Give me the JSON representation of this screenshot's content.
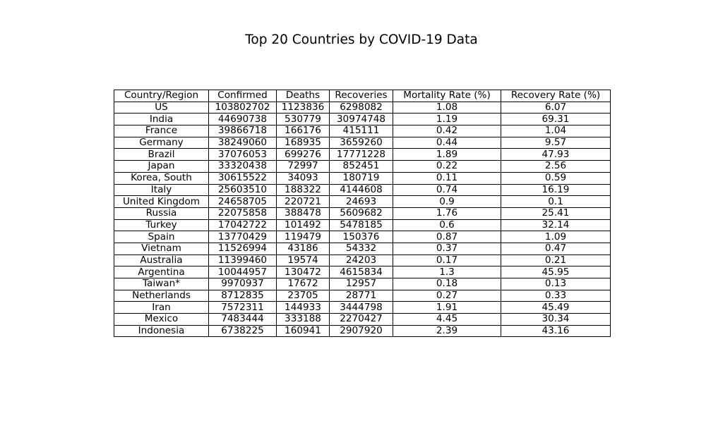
{
  "chart_data": {
    "type": "table",
    "title": "Top 20 Countries by COVID-19 Data",
    "columns": [
      "Country/Region",
      "Confirmed",
      "Deaths",
      "Recoveries",
      "Mortality Rate (%)",
      "Recovery Rate (%)"
    ],
    "rows": [
      [
        "US",
        "103802702",
        "1123836",
        "6298082",
        "1.08",
        "6.07"
      ],
      [
        "India",
        "44690738",
        "530779",
        "30974748",
        "1.19",
        "69.31"
      ],
      [
        "France",
        "39866718",
        "166176",
        "415111",
        "0.42",
        "1.04"
      ],
      [
        "Germany",
        "38249060",
        "168935",
        "3659260",
        "0.44",
        "9.57"
      ],
      [
        "Brazil",
        "37076053",
        "699276",
        "17771228",
        "1.89",
        "47.93"
      ],
      [
        "Japan",
        "33320438",
        "72997",
        "852451",
        "0.22",
        "2.56"
      ],
      [
        "Korea, South",
        "30615522",
        "34093",
        "180719",
        "0.11",
        "0.59"
      ],
      [
        "Italy",
        "25603510",
        "188322",
        "4144608",
        "0.74",
        "16.19"
      ],
      [
        "United Kingdom",
        "24658705",
        "220721",
        "24693",
        "0.9",
        "0.1"
      ],
      [
        "Russia",
        "22075858",
        "388478",
        "5609682",
        "1.76",
        "25.41"
      ],
      [
        "Turkey",
        "17042722",
        "101492",
        "5478185",
        "0.6",
        "32.14"
      ],
      [
        "Spain",
        "13770429",
        "119479",
        "150376",
        "0.87",
        "1.09"
      ],
      [
        "Vietnam",
        "11526994",
        "43186",
        "54332",
        "0.37",
        "0.47"
      ],
      [
        "Australia",
        "11399460",
        "19574",
        "24203",
        "0.17",
        "0.21"
      ],
      [
        "Argentina",
        "10044957",
        "130472",
        "4615834",
        "1.3",
        "45.95"
      ],
      [
        "Taiwan*",
        "9970937",
        "17672",
        "12957",
        "0.18",
        "0.13"
      ],
      [
        "Netherlands",
        "8712835",
        "23705",
        "28771",
        "0.27",
        "0.33"
      ],
      [
        "Iran",
        "7572311",
        "144933",
        "3444798",
        "1.91",
        "45.49"
      ],
      [
        "Mexico",
        "7483444",
        "333188",
        "2270427",
        "4.45",
        "30.34"
      ],
      [
        "Indonesia",
        "6738225",
        "160941",
        "2907920",
        "2.39",
        "43.16"
      ]
    ]
  }
}
